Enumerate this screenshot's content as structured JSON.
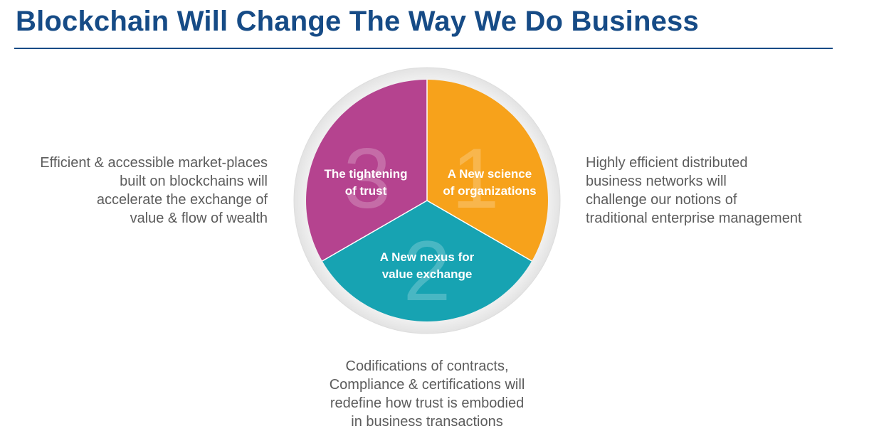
{
  "title": "Blockchain Will Change The Way We Do Business",
  "colors": {
    "title": "#164b86",
    "segment_1": "#f7a21b",
    "segment_2": "#17a3b2",
    "segment_3": "#b5438f",
    "side_text": "#5c5c5c"
  },
  "segments": [
    {
      "number": "1",
      "lines": [
        "A New science",
        "of organizations"
      ]
    },
    {
      "number": "2",
      "lines": [
        "A New nexus for",
        "value exchange"
      ]
    },
    {
      "number": "3",
      "lines": [
        "The tightening",
        "of trust"
      ]
    }
  ],
  "left_text": [
    "Efficient & accessible market-places",
    "built on blockchains will",
    "accelerate the exchange of",
    "value & flow of wealth"
  ],
  "right_text": [
    "Highly efficient distributed",
    "business networks will",
    "challenge our notions of",
    "traditional enterprise management"
  ],
  "bottom_text": [
    "Codifications of contracts,",
    "Compliance & certifications will",
    "redefine how trust is embodied",
    "in business transactions"
  ]
}
